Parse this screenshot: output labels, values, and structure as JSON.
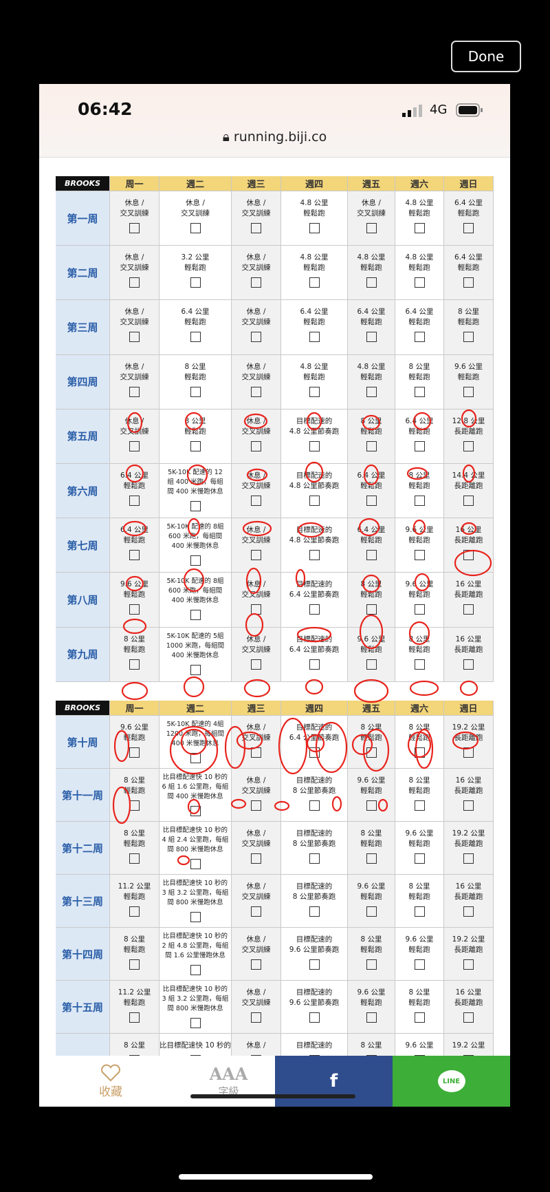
{
  "done_button": "Done",
  "status_bar": {
    "time": "06:42",
    "network": "4G"
  },
  "browser": {
    "url": "running.biji.co"
  },
  "tables": [
    {
      "header": {
        "brand": "BROOKS",
        "days": [
          "周一",
          "週二",
          "週三",
          "週四",
          "週五",
          "週六",
          "週日"
        ]
      },
      "rows": [
        {
          "week": "第一周",
          "cells": [
            [
              "休息 /",
              "交叉訓練"
            ],
            [
              "休息 /",
              "交叉訓練"
            ],
            [
              "休息 /",
              "交叉訓練"
            ],
            [
              "4.8 公里",
              "輕鬆跑"
            ],
            [
              "休息 /",
              "交叉訓練"
            ],
            [
              "4.8 公里",
              "輕鬆跑"
            ],
            [
              "6.4 公里",
              "輕鬆跑"
            ]
          ]
        },
        {
          "week": "第二周",
          "cells": [
            [
              "休息 /",
              "交叉訓練"
            ],
            [
              "3.2 公里",
              "輕鬆跑"
            ],
            [
              "休息 /",
              "交叉訓練"
            ],
            [
              "4.8 公里",
              "輕鬆跑"
            ],
            [
              "4.8 公里",
              "輕鬆跑"
            ],
            [
              "4.8 公里",
              "輕鬆跑"
            ],
            [
              "6.4 公里",
              "輕鬆跑"
            ]
          ]
        },
        {
          "week": "第三周",
          "cells": [
            [
              "休息 /",
              "交叉訓練"
            ],
            [
              "6.4 公里",
              "輕鬆跑"
            ],
            [
              "休息 /",
              "交叉訓練"
            ],
            [
              "6.4 公里",
              "輕鬆跑"
            ],
            [
              "6.4 公里",
              "輕鬆跑"
            ],
            [
              "6.4 公里",
              "輕鬆跑"
            ],
            [
              "8 公里",
              "輕鬆跑"
            ]
          ]
        },
        {
          "week": "第四周",
          "cells": [
            [
              "休息 /",
              "交叉訓練"
            ],
            [
              "8 公里",
              "輕鬆跑"
            ],
            [
              "休息 /",
              "交叉訓練"
            ],
            [
              "4.8 公里",
              "輕鬆跑"
            ],
            [
              "4.8 公里",
              "輕鬆跑"
            ],
            [
              "8 公里",
              "輕鬆跑"
            ],
            [
              "9.6 公里",
              "輕鬆跑"
            ]
          ]
        },
        {
          "week": "第五周",
          "cells": [
            [
              "休息 /",
              "交叉訓練"
            ],
            [
              "8 公里",
              "輕鬆跑"
            ],
            [
              "休息 /",
              "交叉訓練"
            ],
            [
              "目標配速的",
              "4.8 公里節奏跑"
            ],
            [
              "8 公里",
              "輕鬆跑"
            ],
            [
              "6.4 公里",
              "輕鬆跑"
            ],
            [
              "12.8 公里",
              "長距離跑"
            ]
          ]
        },
        {
          "week": "第六周",
          "cells": [
            [
              "6.4 公里",
              "輕鬆跑"
            ],
            [
              "5K-10K 配速的 12",
              "組 400 米跑，每組",
              "間 400 米慢跑休息"
            ],
            [
              "休息 /",
              "交叉訓練"
            ],
            [
              "目標配速的",
              "4.8 公里節奏跑"
            ],
            [
              "6.4 公里",
              "輕鬆跑"
            ],
            [
              "8 公里",
              "輕鬆跑"
            ],
            [
              "14.4 公里",
              "長距離跑"
            ]
          ]
        },
        {
          "week": "第七周",
          "cells": [
            [
              "6.4 公里",
              "輕鬆跑"
            ],
            [
              "5K-10K 配速的 8組",
              "600 米跑，每組間",
              "400 米慢跑休息"
            ],
            [
              "休息 /",
              "交叉訓練"
            ],
            [
              "目標配速的",
              "4.8 公里節奏跑"
            ],
            [
              "6.4 公里",
              "輕鬆跑"
            ],
            [
              "9.6 公里",
              "輕鬆跑"
            ],
            [
              "16 公里",
              "長距離跑"
            ]
          ]
        },
        {
          "week": "第八周",
          "cells": [
            [
              "9.6 公里",
              "輕鬆跑"
            ],
            [
              "5K-10K 配速的 8組",
              "600 米跑，每組間",
              "400 米慢跑休息"
            ],
            [
              "休息 /",
              "交叉訓練"
            ],
            [
              "目標配速的",
              "6.4 公里節奏跑"
            ],
            [
              "8 公里",
              "輕鬆跑"
            ],
            [
              "9.6 公里",
              "輕鬆跑"
            ],
            [
              "16 公里",
              "長距離跑"
            ]
          ]
        },
        {
          "week": "第九周",
          "cells": [
            [
              "8 公里",
              "輕鬆跑"
            ],
            [
              "5K-10K 配速的 5組",
              "1000 米跑，每組間",
              "400 米慢跑休息"
            ],
            [
              "休息 /",
              "交叉訓練"
            ],
            [
              "目標配速的",
              "6.4 公里節奏跑"
            ],
            [
              "9.6 公里",
              "輕鬆跑"
            ],
            [
              "8 公里",
              "輕鬆跑"
            ],
            [
              "16 公里",
              "長距離跑"
            ]
          ]
        }
      ]
    },
    {
      "header": {
        "brand": "BROOKS",
        "days": [
          "周一",
          "週二",
          "週三",
          "週四",
          "週五",
          "週六",
          "週日"
        ]
      },
      "rows": [
        {
          "week": "第十周",
          "cells": [
            [
              "9.6 公里",
              "輕鬆跑"
            ],
            [
              "5K-10K 配速的 4組",
              "1200 米跑，每組間",
              "400 米慢跑休息"
            ],
            [
              "休息 /",
              "交叉訓練"
            ],
            [
              "目標配速的",
              "6.4 公里節奏跑"
            ],
            [
              "8 公里",
              "輕鬆跑"
            ],
            [
              "8 公里",
              "輕鬆跑"
            ],
            [
              "19.2 公里",
              "長距離跑"
            ]
          ]
        },
        {
          "week": "第十一周",
          "cells": [
            [
              "8 公里",
              "輕鬆跑"
            ],
            [
              "比目標配速快 10 秒的",
              "6 組 1.6 公里跑，每組",
              "間 400 米慢跑休息"
            ],
            [
              "休息 /",
              "交叉訓練"
            ],
            [
              "目標配速的",
              "8 公里節奏跑"
            ],
            [
              "9.6 公里",
              "輕鬆跑"
            ],
            [
              "8 公里",
              "輕鬆跑"
            ],
            [
              "16 公里",
              "長距離跑"
            ]
          ]
        },
        {
          "week": "第十二周",
          "cells": [
            [
              "8 公里",
              "輕鬆跑"
            ],
            [
              "比目標配速快 10 秒的",
              "4 組 2.4 公里跑，每組",
              "間 800 米慢跑休息"
            ],
            [
              "休息 /",
              "交叉訓練"
            ],
            [
              "目標配速的",
              "8 公里節奏跑"
            ],
            [
              "8 公里",
              "輕鬆跑"
            ],
            [
              "9.6 公里",
              "輕鬆跑"
            ],
            [
              "19.2 公里",
              "長距離跑"
            ]
          ]
        },
        {
          "week": "第十三周",
          "cells": [
            [
              "11.2 公里",
              "輕鬆跑"
            ],
            [
              "比目標配速快 10 秒的",
              "3 組 3.2 公里跑，每組",
              "間 800 米慢跑休息"
            ],
            [
              "休息 /",
              "交叉訓練"
            ],
            [
              "目標配速的",
              "8 公里節奏跑"
            ],
            [
              "9.6 公里",
              "輕鬆跑"
            ],
            [
              "8 公里",
              "輕鬆跑"
            ],
            [
              "16 公里",
              "長距離跑"
            ]
          ]
        },
        {
          "week": "第十四周",
          "cells": [
            [
              "8 公里",
              "輕鬆跑"
            ],
            [
              "比目標配速快 10 秒的",
              "2 組 4.8 公里跑，每組",
              "間 1.6 公里慢跑休息"
            ],
            [
              "休息 /",
              "交叉訓練"
            ],
            [
              "目標配速的",
              "9.6 公里節奏跑"
            ],
            [
              "8 公里",
              "輕鬆跑"
            ],
            [
              "9.6 公里",
              "輕鬆跑"
            ],
            [
              "19.2 公里",
              "長距離跑"
            ]
          ]
        },
        {
          "week": "第十五周",
          "cells": [
            [
              "11.2 公里",
              "輕鬆跑"
            ],
            [
              "比目標配速快 10 秒的",
              "3 組 3.2 公里跑，每組",
              "間 800 米慢跑休息"
            ],
            [
              "休息 /",
              "交叉訓練"
            ],
            [
              "目標配速的",
              "9.6 公里節奏跑"
            ],
            [
              "9.6 公里",
              "輕鬆跑"
            ],
            [
              "8 公里",
              "輕鬆跑"
            ],
            [
              "16 公里",
              "長距離跑"
            ]
          ]
        },
        {
          "cells": [
            [
              "8 公里"
            ],
            [
              "比目標配速快 10 秒的"
            ],
            [
              "休息 /"
            ],
            [
              "目標配速的"
            ],
            [
              "8 公里"
            ],
            [
              "9.6 公里"
            ],
            [
              "19.2 公里"
            ]
          ]
        }
      ]
    }
  ],
  "bottom_bar": {
    "favorite": "收藏",
    "font_icon": "AAA",
    "font_size": "字級",
    "facebook": "f",
    "line": "LINE"
  }
}
